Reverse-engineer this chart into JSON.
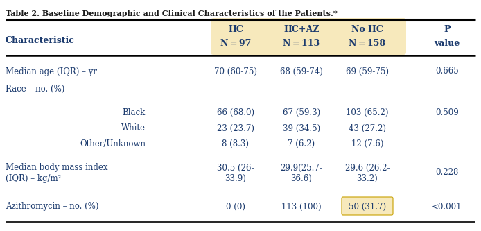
{
  "title": "Table 2. Baseline Demographic and Clinical Characteristics of the Patients.*",
  "header_bg_color": "#F7E9BC",
  "highlight_color": "#F7E9BC",
  "text_color": "#1C3B6E",
  "title_color": "#1a1a1a",
  "col_header_line1": [
    "HC",
    "HC+AZ",
    "No HC",
    "P"
  ],
  "col_header_line2": [
    "N = 97",
    "N = 113",
    "N = 158",
    "value"
  ],
  "rows": [
    {
      "label": "Median age (IQR) – yr",
      "sub": "",
      "c1": "70 (60-75)",
      "c2": "68 (59-74)",
      "c3": "69 (59-75)",
      "p": "0.665",
      "hi": false
    },
    {
      "label": "Race – no. (%)",
      "sub": "",
      "c1": "",
      "c2": "",
      "c3": "",
      "p": "",
      "hi": false
    },
    {
      "label": "",
      "sub": "Black",
      "c1": "66 (68.0)",
      "c2": "67 (59.3)",
      "c3": "103 (65.2)",
      "p": "0.509",
      "hi": false
    },
    {
      "label": "",
      "sub": "White",
      "c1": "23 (23.7)",
      "c2": "39 (34.5)",
      "c3": "43 (27.2)",
      "p": "",
      "hi": false
    },
    {
      "label": "",
      "sub": "Other/Unknown",
      "c1": "8 (8.3)",
      "c2": "7 (6.2)",
      "c3": "12 (7.6)",
      "p": "",
      "hi": false
    },
    {
      "label": "Median body mass index\n(IQR) – kg/m²",
      "sub": "",
      "c1": "30.5 (26-\n33.9)",
      "c2": "29.9(25.7-\n36.6)",
      "c3": "29.6 (26.2-\n33.2)",
      "p": "0.228",
      "hi": false
    },
    {
      "label": "Azithromycin – no. (%)",
      "sub": "",
      "c1": "0 (0)",
      "c2": "113 (100)",
      "c3": "50 (31.7)",
      "p": "<0.001",
      "hi": true
    }
  ],
  "figsize": [
    6.94,
    3.33
  ],
  "dpi": 100
}
